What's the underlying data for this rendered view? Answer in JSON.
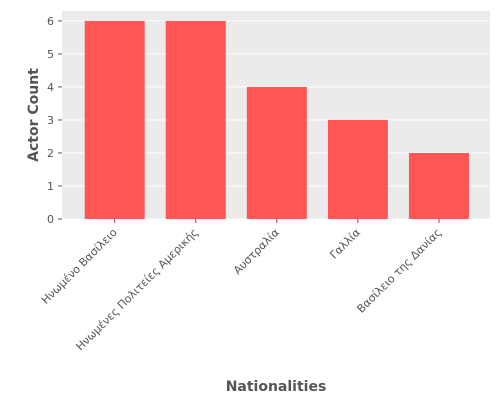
{
  "chart_data": {
    "type": "bar",
    "title": "",
    "xlabel": "Nationalities",
    "ylabel": "Actor Count",
    "categories": [
      "Ηνωμένο Βασίλειο",
      "Ηνωμένες Πολιτείες Αμερικής",
      "Αυστραλία",
      "Γαλλία",
      "Βασίλειο της Δανίας"
    ],
    "values": [
      6,
      6,
      4,
      3,
      2
    ],
    "ylim": [
      0,
      6.3
    ],
    "yticks": [
      0,
      1,
      2,
      3,
      4,
      5,
      6
    ],
    "grid": true,
    "bar_color": "#ff5555",
    "background_color": "#ebebeb"
  }
}
